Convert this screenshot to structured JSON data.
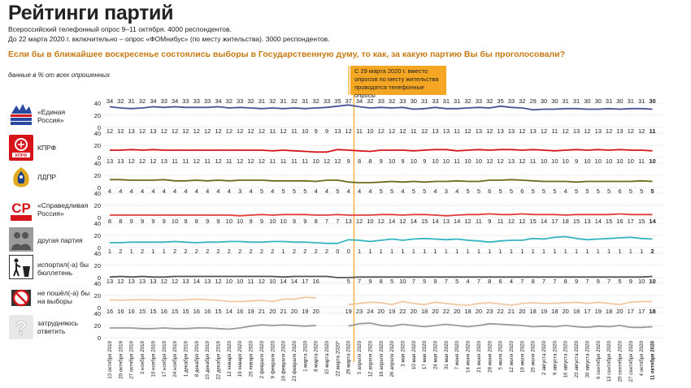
{
  "header": {
    "title": "Рейтинги партий",
    "subtitle_1": "Всероссийский телефонный опрос 9–11 октября. 4000 респондентов.",
    "subtitle_2": "До 22 марта 2020 г. включительно – опрос «ФОМнибус» (по месту жительства). 3000 респондентов.",
    "question": "Если бы в ближайшее воскресенье состоялись выборы в Государственную думу, то как, за какую партию Вы бы проголосовали?",
    "unit_note": "данные в % от всех опрошенных",
    "method_note": "С 29 марта 2020 г. вместо опросов по месту жительства проводятся телефонные опросы"
  },
  "parties": [
    {
      "label": "«Единая Россия»",
      "logo": "united-russia-logo",
      "color": "#4a5296"
    },
    {
      "label": "КПРФ",
      "logo": "kprf-logo",
      "color": "#d7141a"
    },
    {
      "label": "ЛДПР",
      "logo": "ldpr-logo",
      "color": "#6b6b18"
    },
    {
      "label": "«Справедливая Россия»",
      "logo": "sr-logo",
      "color": "#e03c3c"
    },
    {
      "label": "другая партия",
      "logo": "people-icon",
      "color": "#35b5bf"
    },
    {
      "label": "испортил(-а) бы бюллетень",
      "logo": "trash-icon",
      "color": "#555555"
    },
    {
      "label": "не пошёл(-а) бы на выборы",
      "logo": "no-vote-icon",
      "color": "#f2c8a3"
    },
    {
      "label": "затрудняюсь ответить",
      "logo": "question-icon",
      "color": "#9a9a9a"
    }
  ],
  "chart_data": {
    "type": "line",
    "y_ticks": [
      "40",
      "20",
      "0"
    ],
    "ylim": [
      0,
      40
    ],
    "break_after_index": 22,
    "x": [
      "13 октября 2019",
      "20 октября 2019",
      "27 октября 2019",
      "3 ноября 2019",
      "10 ноября 2019",
      "17 ноября 2019",
      "24 ноября 2019",
      "1 декабря 2019",
      "8 декабря 2019",
      "15 декабря 2019",
      "22 декабря 2019",
      "12 января 2020",
      "19 января 2020",
      "26 января 2020",
      "2 февраля 2020",
      "9 февраля 2020",
      "16 февраля 2020",
      "23 февраля 2020",
      "1 марта 2020",
      "8 марта 2020",
      "15 марта 2020",
      "22 марта 2020*",
      "29 марта 2020",
      "5 апреля 2020",
      "12 апреля 2020",
      "19 апреля 2020",
      "26 апреля 2020",
      "3 мая 2020",
      "10 мая 2020",
      "17 мая 2020",
      "24 мая 2020",
      "31 мая 2020",
      "7 июня 2020",
      "14 июня 2020",
      "21 июня 2020",
      "28 июня 2020",
      "5 июля 2020",
      "12 июля 2020",
      "19 июля 2020",
      "26 июля 2020",
      "2 августа 2020",
      "9 августа 2020",
      "16 августа 2020",
      "23 августа 2020",
      "30 августа 2020",
      "6 сентября 2020",
      "13 сентября 2020",
      "20 сентября 2020",
      "27 сентября 2020",
      "4 октября 2020",
      "11 октября 2020"
    ],
    "series": [
      {
        "name": "«Единая Россия»",
        "values": [
          34,
          32,
          31,
          32,
          34,
          33,
          34,
          33,
          33,
          33,
          34,
          32,
          33,
          32,
          31,
          32,
          31,
          32,
          31,
          32,
          33,
          35,
          37,
          34,
          32,
          33,
          32,
          33,
          30,
          31,
          33,
          31,
          31,
          32,
          33,
          32,
          35,
          33,
          32,
          29,
          30,
          30,
          31,
          31,
          30,
          30,
          31,
          30,
          31,
          31,
          30
        ]
      },
      {
        "name": "КПРФ",
        "values": [
          12,
          12,
          13,
          12,
          13,
          12,
          12,
          12,
          12,
          12,
          12,
          12,
          12,
          12,
          12,
          11,
          12,
          11,
          10,
          9,
          9,
          13,
          12,
          11,
          10,
          12,
          12,
          12,
          11,
          12,
          13,
          13,
          11,
          12,
          13,
          12,
          13,
          13,
          12,
          13,
          12,
          11,
          12,
          13,
          12,
          13,
          12,
          13,
          12,
          12,
          11
        ]
      },
      {
        "name": "ЛДПР",
        "values": [
          13,
          13,
          12,
          12,
          12,
          13,
          11,
          11,
          12,
          11,
          12,
          11,
          12,
          12,
          12,
          11,
          11,
          11,
          11,
          10,
          12,
          12,
          9,
          8,
          8,
          9,
          10,
          9,
          10,
          9,
          10,
          10,
          11,
          10,
          10,
          12,
          12,
          13,
          12,
          11,
          10,
          10,
          10,
          9,
          10,
          10,
          10,
          10,
          10,
          11,
          10
        ]
      },
      {
        "name": "«Справедливая Россия»",
        "values": [
          4,
          4,
          4,
          4,
          4,
          4,
          4,
          4,
          4,
          4,
          4,
          4,
          3,
          4,
          5,
          4,
          5,
          5,
          5,
          4,
          4,
          5,
          4,
          4,
          4,
          5,
          5,
          4,
          5,
          5,
          4,
          3,
          4,
          5,
          5,
          6,
          5,
          5,
          6,
          5,
          5,
          5,
          4,
          5,
          5,
          5,
          5,
          6,
          5,
          5,
          5
        ]
      },
      {
        "name": "другая партия",
        "values": [
          8,
          8,
          9,
          9,
          9,
          9,
          10,
          9,
          8,
          9,
          9,
          10,
          10,
          9,
          9,
          10,
          10,
          9,
          9,
          8,
          7,
          7,
          13,
          12,
          10,
          12,
          14,
          12,
          14,
          15,
          14,
          13,
          14,
          12,
          11,
          9,
          11,
          12,
          12,
          15,
          14,
          17,
          18,
          15,
          13,
          14,
          15,
          16,
          17,
          15,
          14
        ]
      },
      {
        "name": "испортил(-а) бы бюллетень",
        "values": [
          1,
          2,
          1,
          2,
          1,
          1,
          2,
          2,
          2,
          2,
          2,
          2,
          2,
          2,
          2,
          2,
          1,
          2,
          2,
          2,
          2,
          0,
          0,
          1,
          1,
          1,
          1,
          1,
          1,
          1,
          1,
          1,
          1,
          1,
          1,
          1,
          1,
          1,
          1,
          1,
          1,
          1,
          1,
          1,
          1,
          1,
          1,
          1,
          1,
          1,
          2
        ]
      },
      {
        "name": "не пошёл(-а) бы на выборы",
        "values": [
          13,
          12,
          13,
          13,
          13,
          12,
          12,
          13,
          14,
          13,
          12,
          10,
          10,
          11,
          12,
          10,
          14,
          14,
          17,
          16,
          null,
          null,
          5,
          7,
          9,
          8,
          5,
          10,
          7,
          5,
          9,
          7,
          5,
          4,
          7,
          8,
          6,
          4,
          7,
          8,
          7,
          7,
          8,
          9,
          7,
          9,
          7,
          5,
          9,
          10,
          10
        ]
      },
      {
        "name": "затрудняюсь ответить",
        "values": [
          16,
          16,
          16,
          15,
          15,
          16,
          15,
          15,
          16,
          16,
          15,
          14,
          16,
          19,
          21,
          20,
          21,
          20,
          19,
          20,
          null,
          null,
          19,
          23,
          24,
          20,
          19,
          22,
          20,
          18,
          20,
          22,
          20,
          18,
          20,
          23,
          22,
          21,
          20,
          18,
          19,
          18,
          20,
          18,
          17,
          19,
          18,
          20,
          17,
          17,
          18
        ]
      }
    ]
  }
}
